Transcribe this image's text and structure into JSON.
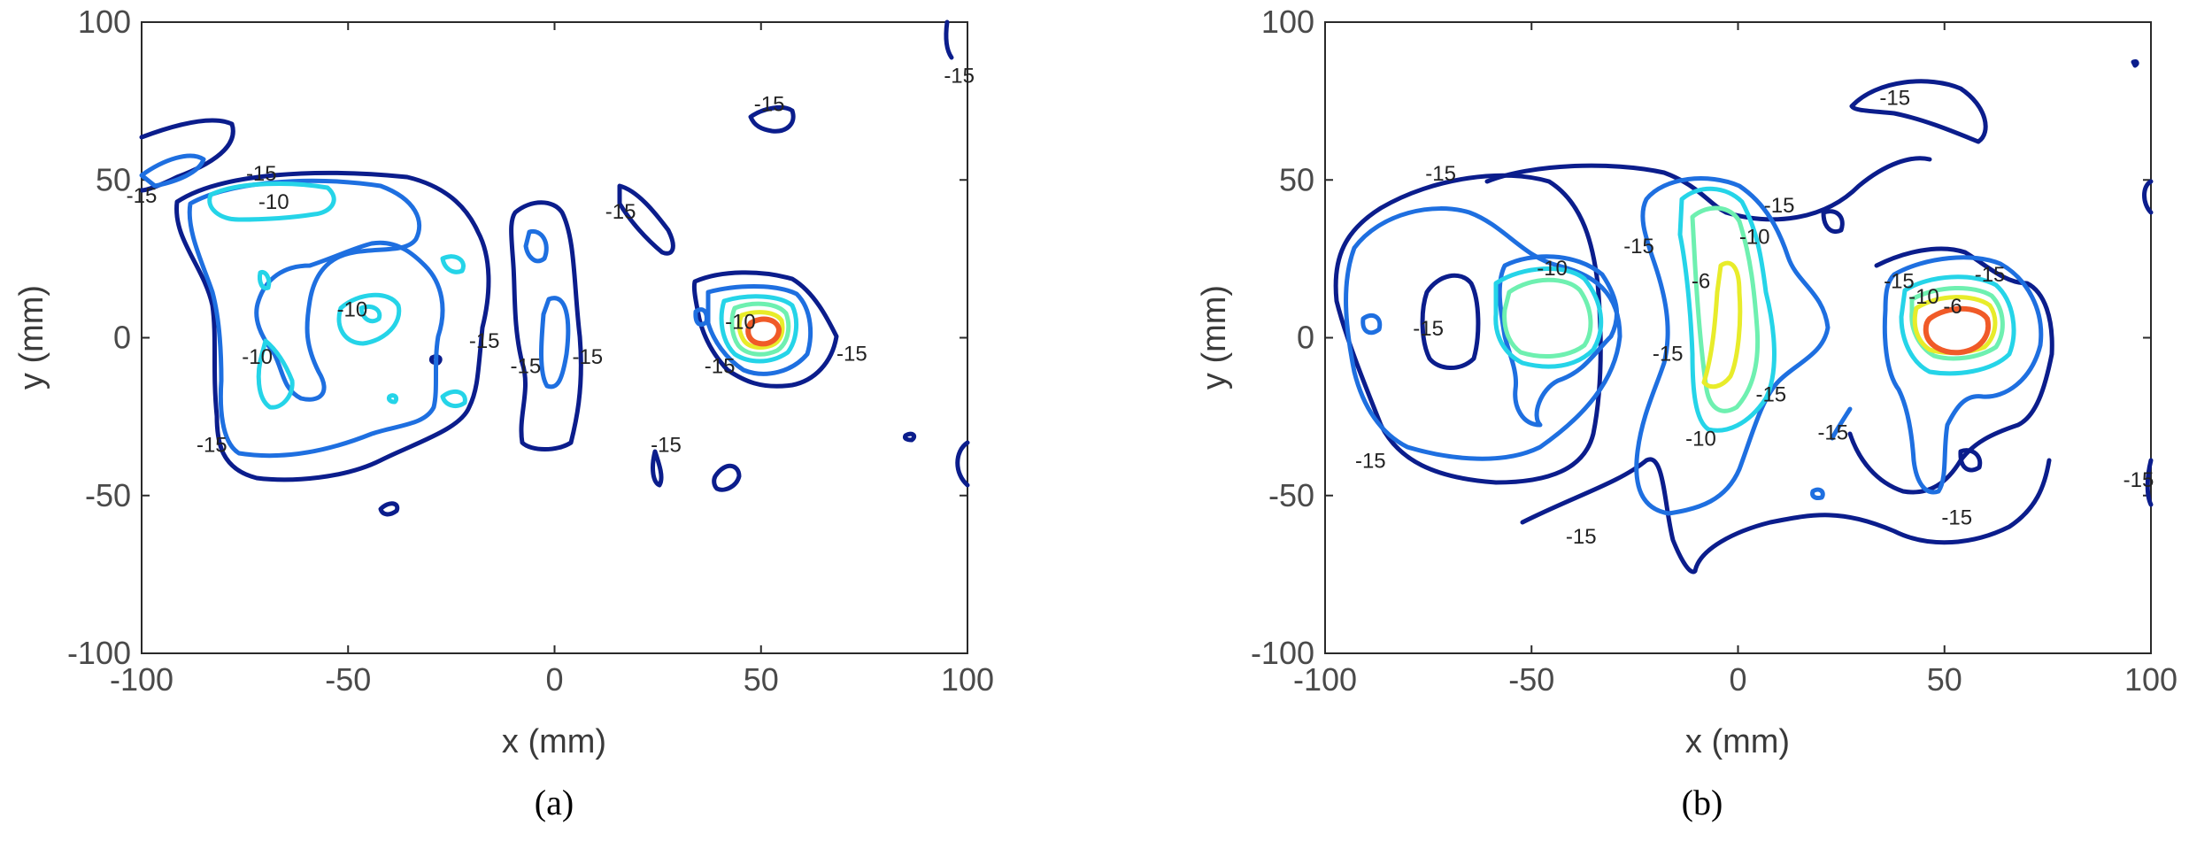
{
  "chart_data": [
    {
      "type": "contour",
      "subplot_label": "(a)",
      "xlabel": "x (mm)",
      "ylabel": "y (mm)",
      "xlim": [
        -100,
        100
      ],
      "ylim": [
        -100,
        100
      ],
      "xticks": [
        -100,
        -50,
        0,
        50,
        100
      ],
      "yticks": [
        -100,
        -50,
        0,
        50,
        100
      ],
      "levels": [
        -15,
        -12,
        -10,
        -8,
        -6,
        -4
      ],
      "level_colors": {
        "-15": "#0b1d8c",
        "-12": "#1e6fe0",
        "-10": "#25d4e8",
        "-8": "#6ef0b0",
        "-6": "#e8ec2a",
        "-4": "#f05a28"
      },
      "contour_labels": [
        {
          "x": -71,
          "y": 52,
          "text": "-15"
        },
        {
          "x": -100,
          "y": 45,
          "text": "-15"
        },
        {
          "x": -68,
          "y": 43,
          "text": "-10"
        },
        {
          "x": -49,
          "y": 9,
          "text": "-10"
        },
        {
          "x": -72,
          "y": -6,
          "text": "-10"
        },
        {
          "x": -83,
          "y": -34,
          "text": "-15"
        },
        {
          "x": -17,
          "y": -1,
          "text": "-15"
        },
        {
          "x": -7,
          "y": -9,
          "text": "-15"
        },
        {
          "x": 8,
          "y": -6,
          "text": "-15"
        },
        {
          "x": 16,
          "y": 40,
          "text": "-15"
        },
        {
          "x": 52,
          "y": 74,
          "text": "-15"
        },
        {
          "x": 98,
          "y": 83,
          "text": "-15"
        },
        {
          "x": 45,
          "y": 5,
          "text": "-10"
        },
        {
          "x": 40,
          "y": -9,
          "text": "-15"
        },
        {
          "x": 72,
          "y": -5,
          "text": "-15"
        },
        {
          "x": 27,
          "y": -34,
          "text": "-15"
        }
      ],
      "peak": {
        "x": 52,
        "y": 0
      }
    },
    {
      "type": "contour",
      "subplot_label": "(b)",
      "xlabel": "x (mm)",
      "ylabel": "y (mm)",
      "xlim": [
        -100,
        100
      ],
      "ylim": [
        -100,
        100
      ],
      "xticks": [
        -100,
        -50,
        0,
        50,
        100
      ],
      "yticks": [
        -100,
        -50,
        0,
        50,
        100
      ],
      "levels": [
        -15,
        -12,
        -10,
        -8,
        -6,
        -4
      ],
      "level_colors": {
        "-15": "#0b1d8c",
        "-12": "#1e6fe0",
        "-10": "#25d4e8",
        "-8": "#6ef0b0",
        "-6": "#e8ec2a",
        "-4": "#f05a28"
      },
      "contour_labels": [
        {
          "x": -72,
          "y": 52,
          "text": "-15"
        },
        {
          "x": -75,
          "y": 3,
          "text": "-15"
        },
        {
          "x": -89,
          "y": -39,
          "text": "-15"
        },
        {
          "x": -45,
          "y": 22,
          "text": "-10"
        },
        {
          "x": -24,
          "y": 29,
          "text": "-15"
        },
        {
          "x": -17,
          "y": -5,
          "text": "-15"
        },
        {
          "x": -9,
          "y": 18,
          "text": "-6"
        },
        {
          "x": 4,
          "y": 32,
          "text": "-10"
        },
        {
          "x": 10,
          "y": 42,
          "text": "-15"
        },
        {
          "x": -9,
          "y": -32,
          "text": "-10"
        },
        {
          "x": -38,
          "y": -63,
          "text": "-15"
        },
        {
          "x": 8,
          "y": -18,
          "text": "-15"
        },
        {
          "x": 23,
          "y": -30,
          "text": "-15"
        },
        {
          "x": 39,
          "y": 18,
          "text": "-15"
        },
        {
          "x": 45,
          "y": 13,
          "text": "-10"
        },
        {
          "x": 52,
          "y": 10,
          "text": "-6"
        },
        {
          "x": 61,
          "y": 20,
          "text": "-15"
        },
        {
          "x": 53,
          "y": -57,
          "text": "-15"
        },
        {
          "x": 38,
          "y": 76,
          "text": "-15"
        },
        {
          "x": 97,
          "y": -45,
          "text": "-15"
        }
      ],
      "peak": {
        "x": 53,
        "y": 1
      }
    }
  ]
}
